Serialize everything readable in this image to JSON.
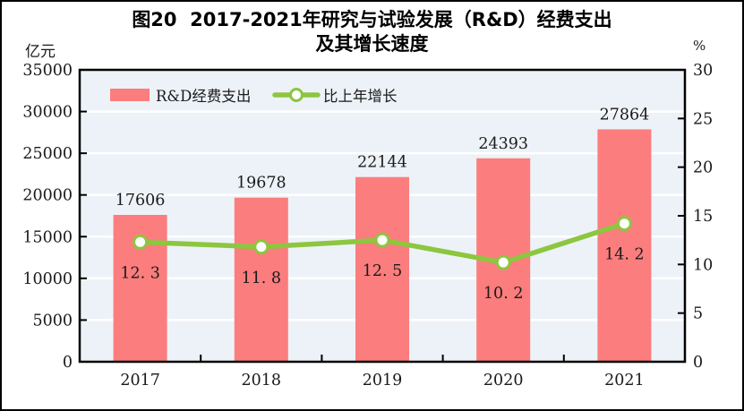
{
  "title": {
    "line1": "图20  2017-2021年研究与试验发展（R&D）经费支出",
    "line2": "及其增长速度"
  },
  "axes": {
    "left_unit": "亿元",
    "right_unit": "%"
  },
  "legend": [
    {
      "label": "R&D经费支出",
      "type": "bar"
    },
    {
      "label": "比上年增长",
      "type": "line"
    }
  ],
  "colors": {
    "bar": "#fb7d7d",
    "line": "#8dc63f",
    "marker_fill": "#ffffff",
    "plot_bg": "#edf2f8",
    "grid": "#ffffff",
    "axis": "#000000",
    "text": "#1a1a1a"
  },
  "chart_data": {
    "type": "bar",
    "title": "图20 2017-2021年研究与试验发展（R&D）经费支出及其增长速度",
    "categories": [
      "2017",
      "2018",
      "2019",
      "2020",
      "2021"
    ],
    "series": [
      {
        "name": "R&D经费支出",
        "type": "bar",
        "axis": "left",
        "values": [
          17606,
          19678,
          22144,
          24393,
          27864
        ]
      },
      {
        "name": "比上年增长",
        "type": "line",
        "axis": "right",
        "values": [
          12.3,
          11.8,
          12.5,
          10.2,
          14.2
        ]
      }
    ],
    "left_axis": {
      "label": "亿元",
      "min": 0,
      "max": 35000,
      "step": 5000
    },
    "right_axis": {
      "label": "%",
      "min": 0,
      "max": 30,
      "step": 5
    },
    "grid": true,
    "legend_position": "top-left-inside"
  }
}
